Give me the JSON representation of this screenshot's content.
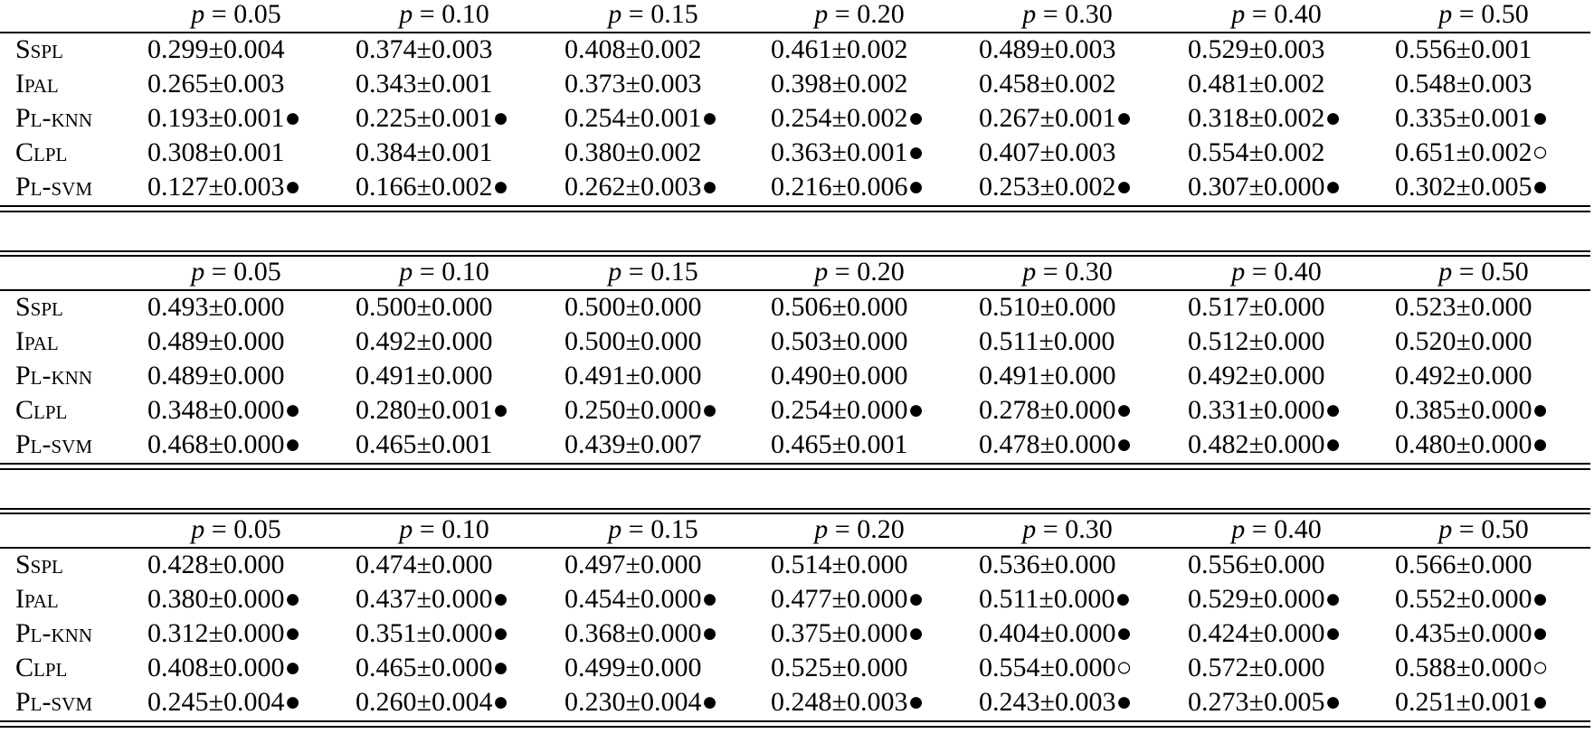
{
  "column_headers": [
    "p = 0.05",
    "p = 0.10",
    "p = 0.15",
    "p = 0.20",
    "p = 0.30",
    "p = 0.40",
    "p = 0.50"
  ],
  "methods": [
    "Sspl",
    "Ipal",
    "Pl-knn",
    "Clpl",
    "Pl-svm"
  ],
  "tables": [
    {
      "rows": [
        [
          "0.299±0.004",
          "0.374±0.003",
          "0.408±0.002",
          "0.461±0.002",
          "0.489±0.003",
          "0.529±0.003",
          "0.556±0.001"
        ],
        [
          "0.265±0.003",
          "0.343±0.001",
          "0.373±0.003",
          "0.398±0.002",
          "0.458±0.002",
          "0.481±0.002",
          "0.548±0.003"
        ],
        [
          "0.193±0.001●",
          "0.225±0.001●",
          "0.254±0.001●",
          "0.254±0.002●",
          "0.267±0.001●",
          "0.318±0.002●",
          "0.335±0.001●"
        ],
        [
          "0.308±0.001",
          "0.384±0.001",
          "0.380±0.002",
          "0.363±0.001●",
          "0.407±0.003",
          "0.554±0.002",
          "0.651±0.002○"
        ],
        [
          "0.127±0.003●",
          "0.166±0.002●",
          "0.262±0.003●",
          "0.216±0.006●",
          "0.253±0.002●",
          "0.307±0.000●",
          "0.302±0.005●"
        ]
      ]
    },
    {
      "rows": [
        [
          "0.493±0.000",
          "0.500±0.000",
          "0.500±0.000",
          "0.506±0.000",
          "0.510±0.000",
          "0.517±0.000",
          "0.523±0.000"
        ],
        [
          "0.489±0.000",
          "0.492±0.000",
          "0.500±0.000",
          "0.503±0.000",
          "0.511±0.000",
          "0.512±0.000",
          "0.520±0.000"
        ],
        [
          "0.489±0.000",
          "0.491±0.000",
          "0.491±0.000",
          "0.490±0.000",
          "0.491±0.000",
          "0.492±0.000",
          "0.492±0.000"
        ],
        [
          "0.348±0.000●",
          "0.280±0.001●",
          "0.250±0.000●",
          "0.254±0.000●",
          "0.278±0.000●",
          "0.331±0.000●",
          "0.385±0.000●"
        ],
        [
          "0.468±0.000●",
          "0.465±0.001",
          "0.439±0.007",
          "0.465±0.001",
          "0.478±0.000●",
          "0.482±0.000●",
          "0.480±0.000●"
        ]
      ]
    },
    {
      "rows": [
        [
          "0.428±0.000",
          "0.474±0.000",
          "0.497±0.000",
          "0.514±0.000",
          "0.536±0.000",
          "0.556±0.000",
          "0.566±0.000"
        ],
        [
          "0.380±0.000●",
          "0.437±0.000●",
          "0.454±0.000●",
          "0.477±0.000●",
          "0.511±0.000●",
          "0.529±0.000●",
          "0.552±0.000●"
        ],
        [
          "0.312±0.000●",
          "0.351±0.000●",
          "0.368±0.000●",
          "0.375±0.000●",
          "0.404±0.000●",
          "0.424±0.000●",
          "0.435±0.000●"
        ],
        [
          "0.408±0.000●",
          "0.465±0.000●",
          "0.499±0.000",
          "0.525±0.000",
          "0.554±0.000○",
          "0.572±0.000",
          "0.588±0.000○"
        ],
        [
          "0.245±0.004●",
          "0.260±0.004●",
          "0.230±0.004●",
          "0.248±0.003●",
          "0.243±0.003●",
          "0.273±0.005●",
          "0.251±0.001●"
        ]
      ]
    }
  ]
}
